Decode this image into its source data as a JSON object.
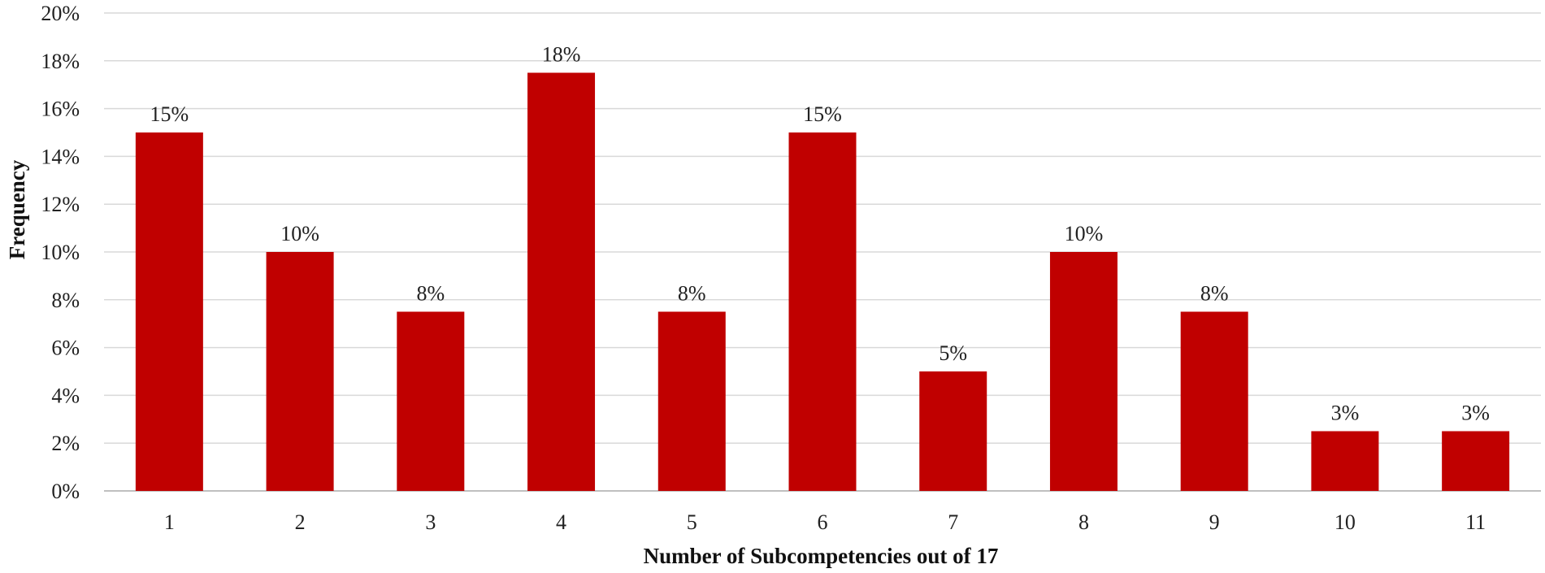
{
  "chart_data": {
    "type": "bar",
    "categories": [
      "1",
      "2",
      "3",
      "4",
      "5",
      "6",
      "7",
      "8",
      "9",
      "10",
      "11"
    ],
    "values": [
      15,
      10,
      7.5,
      17.5,
      7.5,
      15,
      5,
      10,
      7.5,
      2.5,
      2.5
    ],
    "data_labels": [
      "15%",
      "10%",
      "8%",
      "18%",
      "8%",
      "15%",
      "5%",
      "10%",
      "8%",
      "3%",
      "3%"
    ],
    "y_ticks": [
      0,
      2,
      4,
      6,
      8,
      10,
      12,
      14,
      16,
      18,
      20
    ],
    "y_tick_labels": [
      "0%",
      "2%",
      "4%",
      "6%",
      "8%",
      "10%",
      "12%",
      "14%",
      "16%",
      "18%",
      "20%"
    ],
    "title": "",
    "xlabel": "Number of Subcompetencies out of 17",
    "ylabel": "Frequency",
    "ylim": [
      0,
      20
    ],
    "grid": true,
    "legend": "none",
    "bar_color": "#C00000"
  }
}
